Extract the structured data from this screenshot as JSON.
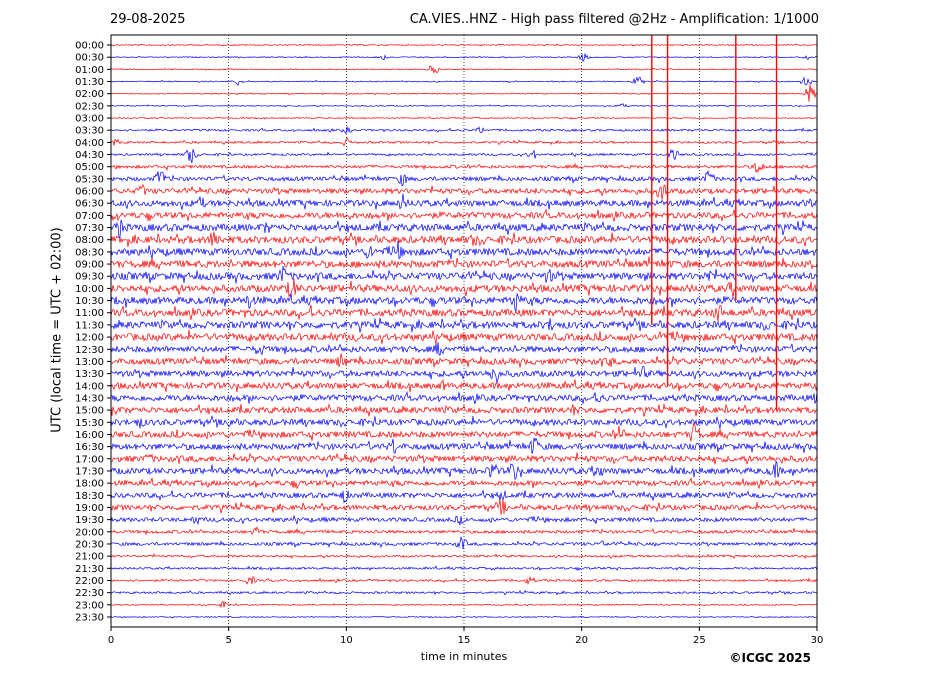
{
  "header": {
    "date": "29-08-2025",
    "title": "CA.VIES..HNZ - High pass filtered @2Hz - Amplification: 1/1000"
  },
  "footer": {
    "copyright": "©ICGC 2025"
  },
  "chart_data": {
    "type": "line",
    "title": "CA.VIES..HNZ - High pass filtered @2Hz - Amplification: 1/1000",
    "xlabel": "time in minutes",
    "ylabel": "UTC (local time = UTC + 02:00)",
    "xlim": [
      0,
      30
    ],
    "x_ticks": [
      0,
      5,
      10,
      15,
      20,
      25,
      30
    ],
    "x_tick_labels": [
      "0",
      "5",
      "10",
      "15",
      "20",
      "25",
      "30"
    ],
    "grid": "vertical dotted lines at each x tick",
    "row_labels": [
      "00:00",
      "00:30",
      "01:00",
      "01:30",
      "02:00",
      "02:30",
      "03:00",
      "03:30",
      "04:00",
      "04:30",
      "05:00",
      "05:30",
      "06:00",
      "06:30",
      "07:00",
      "07:30",
      "08:00",
      "08:30",
      "09:00",
      "09:30",
      "10:00",
      "10:30",
      "11:00",
      "11:30",
      "12:00",
      "12:30",
      "13:00",
      "13:30",
      "14:00",
      "14:30",
      "15:00",
      "15:30",
      "16:00",
      "16:30",
      "17:00",
      "17:30",
      "18:00",
      "18:30",
      "19:00",
      "19:30",
      "20:00",
      "20:30",
      "21:00",
      "21:30",
      "22:00",
      "22:30",
      "23:00",
      "23:30"
    ],
    "row_colors": [
      "#ff0000",
      "#0000ff"
    ],
    "row_amplitude": [
      1,
      1,
      1,
      1,
      1,
      1,
      1,
      2,
      2,
      2,
      3,
      4,
      5,
      6,
      6,
      7,
      7,
      7,
      7,
      7,
      7,
      7,
      7,
      7,
      7,
      6,
      6,
      6,
      6,
      6,
      6,
      6,
      6,
      6,
      6,
      6,
      5,
      5,
      5,
      4,
      3,
      3,
      2,
      2,
      2,
      2,
      1,
      1
    ],
    "bursts": [
      {
        "row": 1,
        "t": 11.5,
        "amp": 4
      },
      {
        "row": 1,
        "t": 20.1,
        "amp": 5
      },
      {
        "row": 1,
        "t": 29.6,
        "amp": 3
      },
      {
        "row": 2,
        "t": 13.7,
        "amp": 6
      },
      {
        "row": 3,
        "t": 5.4,
        "amp": 4
      },
      {
        "row": 3,
        "t": 22.4,
        "amp": 6
      },
      {
        "row": 3,
        "t": 29.5,
        "amp": 8
      },
      {
        "row": 4,
        "t": 29.7,
        "amp": 10
      },
      {
        "row": 5,
        "t": 21.7,
        "amp": 3
      },
      {
        "row": 7,
        "t": 10.0,
        "amp": 4
      },
      {
        "row": 7,
        "t": 15.7,
        "amp": 4
      },
      {
        "row": 8,
        "t": 0.2,
        "amp": 4
      },
      {
        "row": 8,
        "t": 10.0,
        "amp": 5
      },
      {
        "row": 9,
        "t": 3.4,
        "amp": 10
      },
      {
        "row": 9,
        "t": 17.9,
        "amp": 6
      },
      {
        "row": 9,
        "t": 23.9,
        "amp": 7
      },
      {
        "row": 10,
        "t": 27.5,
        "amp": 9
      },
      {
        "row": 11,
        "t": 2.1,
        "amp": 12
      },
      {
        "row": 11,
        "t": 12.4,
        "amp": 8
      },
      {
        "row": 11,
        "t": 25.4,
        "amp": 10
      },
      {
        "row": 12,
        "t": 1.3,
        "amp": 8
      },
      {
        "row": 12,
        "t": 23.4,
        "amp": 12
      },
      {
        "row": 13,
        "t": 3.8,
        "amp": 8
      },
      {
        "row": 13,
        "t": 12.4,
        "amp": 10
      },
      {
        "row": 13,
        "t": 29.6,
        "amp": 8
      },
      {
        "row": 14,
        "t": 0.2,
        "amp": 8
      },
      {
        "row": 14,
        "t": 10.0,
        "amp": 7
      },
      {
        "row": 15,
        "t": 0.4,
        "amp": 12
      },
      {
        "row": 15,
        "t": 6.6,
        "amp": 8
      },
      {
        "row": 16,
        "t": 4.4,
        "amp": 14
      },
      {
        "row": 16,
        "t": 15.4,
        "amp": 8
      },
      {
        "row": 17,
        "t": 11.0,
        "amp": 10
      },
      {
        "row": 17,
        "t": 12.2,
        "amp": 12
      },
      {
        "row": 18,
        "t": 29.8,
        "amp": 8
      },
      {
        "row": 19,
        "t": 7.3,
        "amp": 12
      },
      {
        "row": 19,
        "t": 18.6,
        "amp": 10
      },
      {
        "row": 19,
        "t": 25.4,
        "amp": 9
      },
      {
        "row": 20,
        "t": 7.7,
        "amp": 14
      },
      {
        "row": 20,
        "t": 26.4,
        "amp": 10
      },
      {
        "row": 21,
        "t": 5.9,
        "amp": 10
      },
      {
        "row": 21,
        "t": 17.2,
        "amp": 14
      },
      {
        "row": 22,
        "t": 8.5,
        "amp": 9
      },
      {
        "row": 22,
        "t": 25.8,
        "amp": 12
      },
      {
        "row": 23,
        "t": 18.7,
        "amp": 9
      },
      {
        "row": 23,
        "t": 27.9,
        "amp": 8
      },
      {
        "row": 24,
        "t": 23.4,
        "amp": 10
      },
      {
        "row": 25,
        "t": 6.3,
        "amp": 9
      },
      {
        "row": 25,
        "t": 13.9,
        "amp": 8
      },
      {
        "row": 26,
        "t": 9.8,
        "amp": 10
      },
      {
        "row": 26,
        "t": 21.2,
        "amp": 7
      },
      {
        "row": 27,
        "t": 16.3,
        "amp": 14
      },
      {
        "row": 27,
        "t": 22.6,
        "amp": 8
      },
      {
        "row": 28,
        "t": 14.1,
        "amp": 6
      },
      {
        "row": 29,
        "t": 20.7,
        "amp": 9
      },
      {
        "row": 29,
        "t": 30.0,
        "amp": 8
      },
      {
        "row": 30,
        "t": 0.1,
        "amp": 10
      },
      {
        "row": 30,
        "t": 19.7,
        "amp": 8
      },
      {
        "row": 31,
        "t": 1.2,
        "amp": 8
      },
      {
        "row": 31,
        "t": 5.0,
        "amp": 8
      },
      {
        "row": 32,
        "t": 21.6,
        "amp": 10
      },
      {
        "row": 32,
        "t": 24.8,
        "amp": 14
      },
      {
        "row": 33,
        "t": 12.0,
        "amp": 10
      },
      {
        "row": 33,
        "t": 18.0,
        "amp": 12
      },
      {
        "row": 34,
        "t": 1.6,
        "amp": 7
      },
      {
        "row": 35,
        "t": 16.2,
        "amp": 12
      },
      {
        "row": 35,
        "t": 17.1,
        "amp": 12
      },
      {
        "row": 35,
        "t": 20.7,
        "amp": 10
      },
      {
        "row": 35,
        "t": 28.2,
        "amp": 12
      },
      {
        "row": 36,
        "t": 7.9,
        "amp": 6
      },
      {
        "row": 37,
        "t": 9.9,
        "amp": 9
      },
      {
        "row": 37,
        "t": 16.6,
        "amp": 8
      },
      {
        "row": 38,
        "t": 16.6,
        "amp": 10
      },
      {
        "row": 39,
        "t": 3.6,
        "amp": 6
      },
      {
        "row": 39,
        "t": 14.8,
        "amp": 6
      },
      {
        "row": 40,
        "t": 6.2,
        "amp": 6
      },
      {
        "row": 41,
        "t": 14.9,
        "amp": 8
      },
      {
        "row": 41,
        "t": 20.9,
        "amp": 4
      },
      {
        "row": 44,
        "t": 5.9,
        "amp": 6
      },
      {
        "row": 44,
        "t": 17.8,
        "amp": 5
      },
      {
        "row": 46,
        "t": 4.8,
        "amp": 4
      }
    ],
    "spikes": [
      {
        "t": 22.98,
        "from_row": 0,
        "to_row": 23,
        "color": "#ff0000"
      },
      {
        "t": 23.65,
        "from_row": 0,
        "to_row": 28,
        "color": "#ff0000"
      },
      {
        "t": 26.55,
        "from_row": 0,
        "to_row": 21,
        "color": "#ff0000"
      },
      {
        "t": 28.28,
        "from_row": 0,
        "to_row": 30,
        "color": "#ff0000"
      }
    ]
  }
}
